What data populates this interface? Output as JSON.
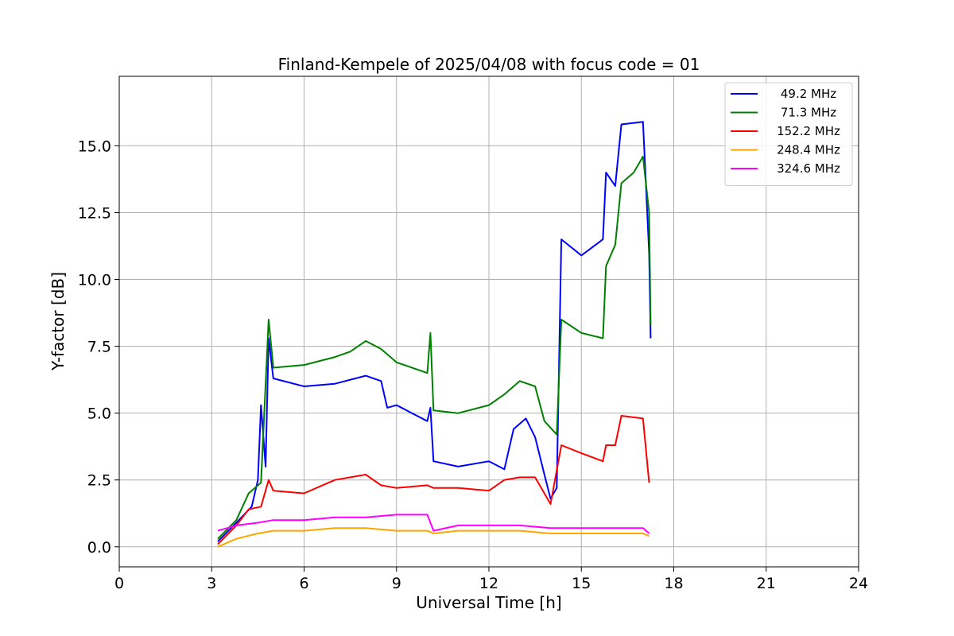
{
  "chart_data": {
    "type": "line",
    "title": "Finland-Kempele of 2025/04/08 with focus code = 01",
    "xlabel": "Universal Time [h]",
    "ylabel": "Y-factor [dB]",
    "xlim": [
      0,
      24
    ],
    "ylim": [
      -0.75,
      17.6
    ],
    "xticks": [
      "0",
      "3",
      "6",
      "9",
      "12",
      "15",
      "18",
      "21",
      "24"
    ],
    "xtick_values": [
      0,
      3,
      6,
      9,
      12,
      15,
      18,
      21,
      24
    ],
    "yticks": [
      "0.0",
      "2.5",
      "5.0",
      "7.5",
      "10.0",
      "12.5",
      "15.0"
    ],
    "ytick_values": [
      0,
      2.5,
      5.0,
      7.5,
      10.0,
      12.5,
      15.0
    ],
    "grid": true,
    "legend_position": "top-right",
    "series": [
      {
        "name": "49.2 MHz",
        "color": "#0000ff",
        "points": [
          [
            3.2,
            0.2
          ],
          [
            3.8,
            0.9
          ],
          [
            4.3,
            1.5
          ],
          [
            4.5,
            2.5
          ],
          [
            4.6,
            5.3
          ],
          [
            4.75,
            3.0
          ],
          [
            4.85,
            7.8
          ],
          [
            5.0,
            6.3
          ],
          [
            6.0,
            6.0
          ],
          [
            7.0,
            6.1
          ],
          [
            8.0,
            6.4
          ],
          [
            8.5,
            6.2
          ],
          [
            8.7,
            5.2
          ],
          [
            9.0,
            5.3
          ],
          [
            9.5,
            5.0
          ],
          [
            10.0,
            4.7
          ],
          [
            10.1,
            5.2
          ],
          [
            10.2,
            3.2
          ],
          [
            11.0,
            3.0
          ],
          [
            12.0,
            3.2
          ],
          [
            12.5,
            2.9
          ],
          [
            12.8,
            4.4
          ],
          [
            13.2,
            4.8
          ],
          [
            13.5,
            4.1
          ],
          [
            13.8,
            2.7
          ],
          [
            14.0,
            1.8
          ],
          [
            14.2,
            2.2
          ],
          [
            14.35,
            11.5
          ],
          [
            15.0,
            10.9
          ],
          [
            15.7,
            11.5
          ],
          [
            15.8,
            14.0
          ],
          [
            16.1,
            13.5
          ],
          [
            16.3,
            15.8
          ],
          [
            17.0,
            15.9
          ],
          [
            17.2,
            11.0
          ],
          [
            17.25,
            7.8
          ]
        ]
      },
      {
        "name": "71.3 MHz",
        "color": "#008000",
        "points": [
          [
            3.2,
            0.3
          ],
          [
            3.8,
            1.0
          ],
          [
            4.2,
            2.0
          ],
          [
            4.6,
            2.4
          ],
          [
            4.85,
            8.5
          ],
          [
            5.0,
            6.7
          ],
          [
            6.0,
            6.8
          ],
          [
            7.0,
            7.1
          ],
          [
            7.5,
            7.3
          ],
          [
            8.0,
            7.7
          ],
          [
            8.5,
            7.4
          ],
          [
            9.0,
            6.9
          ],
          [
            10.0,
            6.5
          ],
          [
            10.1,
            8.0
          ],
          [
            10.2,
            5.1
          ],
          [
            11.0,
            5.0
          ],
          [
            12.0,
            5.3
          ],
          [
            12.5,
            5.7
          ],
          [
            13.0,
            6.2
          ],
          [
            13.5,
            6.0
          ],
          [
            13.8,
            4.7
          ],
          [
            14.2,
            4.2
          ],
          [
            14.35,
            8.5
          ],
          [
            15.0,
            8.0
          ],
          [
            15.7,
            7.8
          ],
          [
            15.8,
            10.5
          ],
          [
            16.1,
            11.3
          ],
          [
            16.3,
            13.6
          ],
          [
            16.7,
            14.0
          ],
          [
            17.0,
            14.6
          ],
          [
            17.2,
            12.5
          ],
          [
            17.25,
            8.3
          ]
        ]
      },
      {
        "name": "152.2 MHz",
        "color": "#ff0000",
        "points": [
          [
            3.2,
            0.1
          ],
          [
            3.8,
            0.8
          ],
          [
            4.2,
            1.4
          ],
          [
            4.6,
            1.5
          ],
          [
            4.85,
            2.5
          ],
          [
            5.0,
            2.1
          ],
          [
            6.0,
            2.0
          ],
          [
            7.0,
            2.5
          ],
          [
            8.0,
            2.7
          ],
          [
            8.5,
            2.3
          ],
          [
            9.0,
            2.2
          ],
          [
            10.0,
            2.3
          ],
          [
            10.2,
            2.2
          ],
          [
            11.0,
            2.2
          ],
          [
            12.0,
            2.1
          ],
          [
            12.5,
            2.5
          ],
          [
            13.0,
            2.6
          ],
          [
            13.5,
            2.6
          ],
          [
            14.0,
            1.6
          ],
          [
            14.35,
            3.8
          ],
          [
            15.0,
            3.5
          ],
          [
            15.7,
            3.2
          ],
          [
            15.8,
            3.8
          ],
          [
            16.1,
            3.8
          ],
          [
            16.3,
            4.9
          ],
          [
            17.0,
            4.8
          ],
          [
            17.2,
            2.4
          ]
        ]
      },
      {
        "name": "248.4 MHz",
        "color": "#ffa500",
        "points": [
          [
            3.2,
            0.0
          ],
          [
            3.8,
            0.3
          ],
          [
            4.5,
            0.5
          ],
          [
            5.0,
            0.6
          ],
          [
            6.0,
            0.6
          ],
          [
            7.0,
            0.7
          ],
          [
            8.0,
            0.7
          ],
          [
            9.0,
            0.6
          ],
          [
            10.0,
            0.6
          ],
          [
            10.2,
            0.5
          ],
          [
            11.0,
            0.6
          ],
          [
            12.0,
            0.6
          ],
          [
            13.0,
            0.6
          ],
          [
            14.0,
            0.5
          ],
          [
            15.0,
            0.5
          ],
          [
            16.0,
            0.5
          ],
          [
            17.0,
            0.5
          ],
          [
            17.2,
            0.4
          ]
        ]
      },
      {
        "name": "324.6 MHz",
        "color": "#ff00ff",
        "points": [
          [
            3.2,
            0.6
          ],
          [
            3.8,
            0.8
          ],
          [
            4.5,
            0.9
          ],
          [
            5.0,
            1.0
          ],
          [
            6.0,
            1.0
          ],
          [
            7.0,
            1.1
          ],
          [
            8.0,
            1.1
          ],
          [
            9.0,
            1.2
          ],
          [
            10.0,
            1.2
          ],
          [
            10.2,
            0.6
          ],
          [
            11.0,
            0.8
          ],
          [
            12.0,
            0.8
          ],
          [
            13.0,
            0.8
          ],
          [
            14.0,
            0.7
          ],
          [
            15.0,
            0.7
          ],
          [
            16.0,
            0.7
          ],
          [
            17.0,
            0.7
          ],
          [
            17.2,
            0.5
          ]
        ]
      }
    ]
  }
}
